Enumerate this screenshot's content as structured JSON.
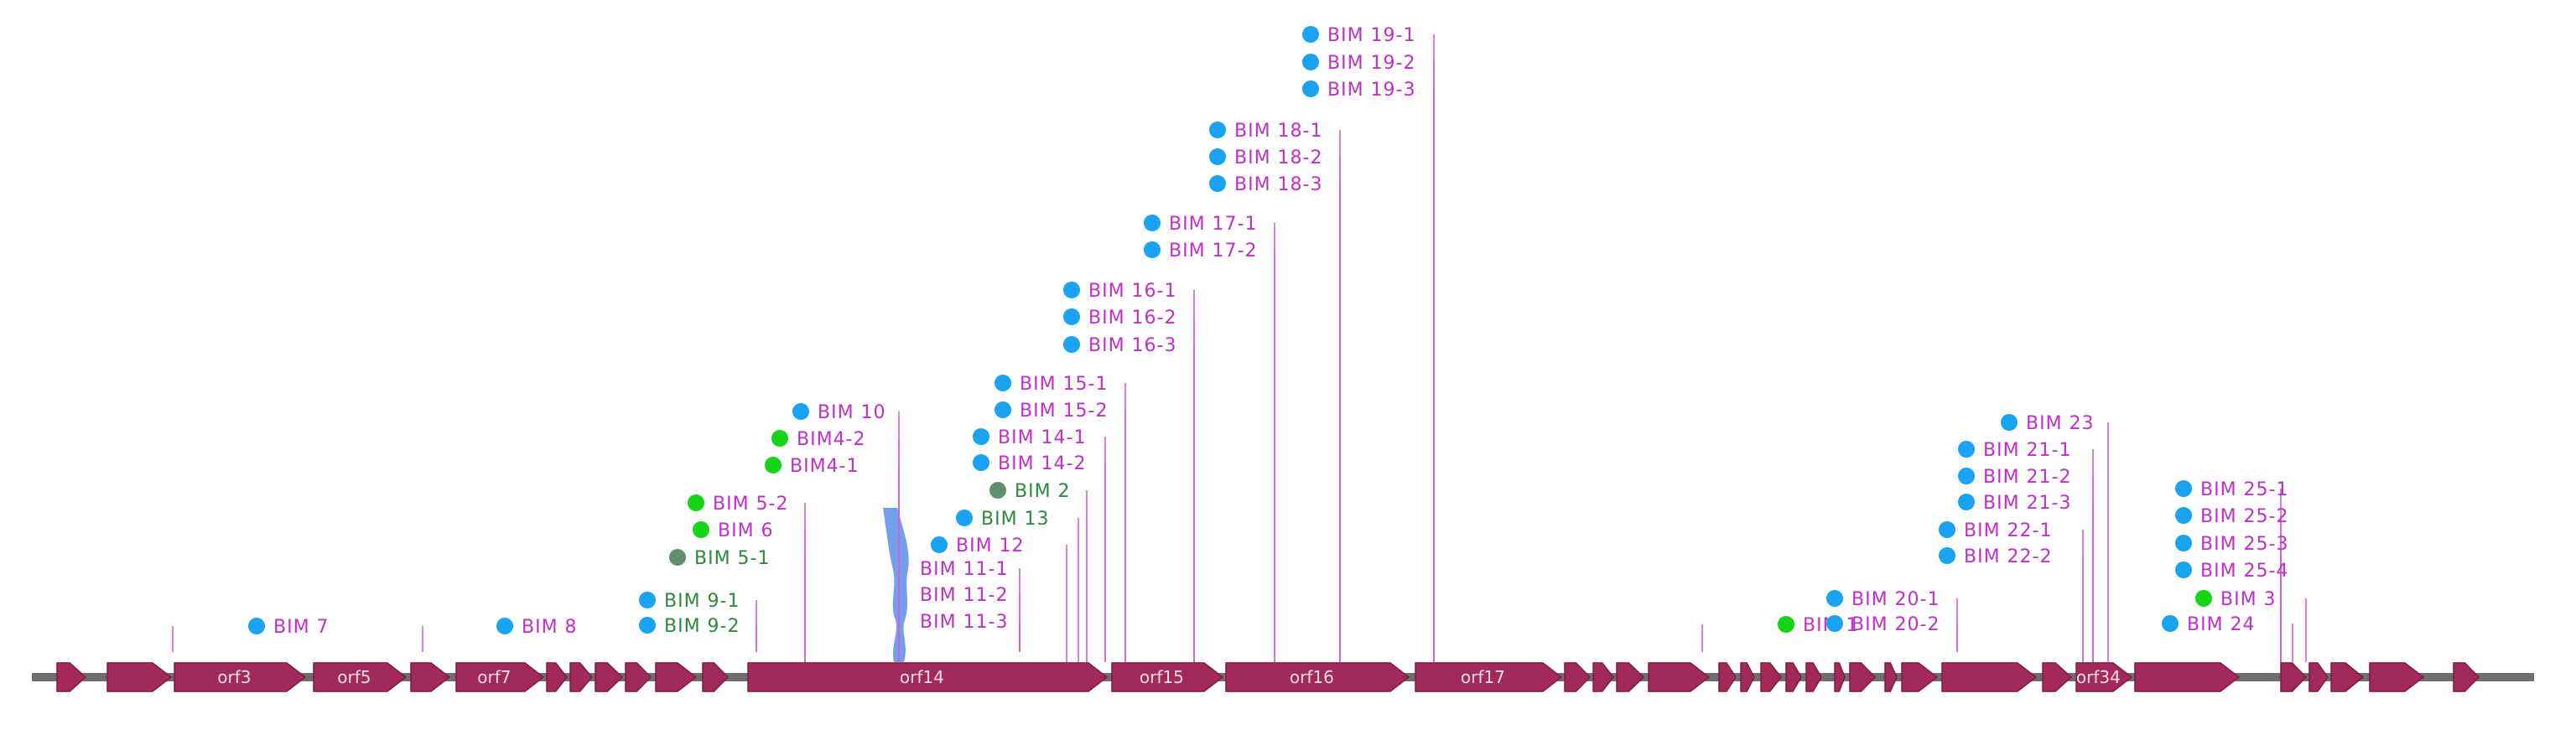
{
  "colors": {
    "backbone": "#6e6e6e",
    "gene": "#a3295a",
    "gene_edge": "#7a1c42",
    "label": "#c02fc8",
    "label_alt": "#2d8a3a",
    "leader": "#d060d6",
    "dot_blue": "#1aa3f0",
    "dot_green": "#16d416",
    "dot_grey": "#5f8f6f",
    "bim10_marker": "#5b8fe6"
  },
  "genes": [
    {
      "name": ""
    },
    {
      "name": ""
    },
    {
      "name": "orf3"
    },
    {
      "name": "orf5"
    },
    {
      "name": ""
    },
    {
      "name": "orf7"
    },
    {
      "name": ""
    },
    {
      "name": ""
    },
    {
      "name": ""
    },
    {
      "name": ""
    },
    {
      "name": ""
    },
    {
      "name": ""
    },
    {
      "name": "orf14"
    },
    {
      "name": "orf15"
    },
    {
      "name": "orf16"
    },
    {
      "name": "orf17"
    },
    {
      "name": ""
    },
    {
      "name": ""
    },
    {
      "name": ""
    },
    {
      "name": ""
    },
    {
      "name": ""
    },
    {
      "name": ""
    },
    {
      "name": ""
    },
    {
      "name": ""
    },
    {
      "name": ""
    },
    {
      "name": ""
    },
    {
      "name": ""
    },
    {
      "name": ""
    },
    {
      "name": ""
    },
    {
      "name": ""
    },
    {
      "name": ""
    },
    {
      "name": "orf34"
    },
    {
      "name": ""
    },
    {
      "name": ""
    },
    {
      "name": ""
    },
    {
      "name": ""
    },
    {
      "name": ""
    },
    {
      "name": ""
    }
  ],
  "sites": [
    {
      "label": "BIM 7",
      "dot": "blue"
    },
    {
      "label": "BIM 8",
      "dot": "blue"
    },
    {
      "label": "BIM 9-1",
      "dot": "blue"
    },
    {
      "label": "BIM 9-2",
      "dot": "blue"
    },
    {
      "label": "BIM 5-2",
      "dot": "green"
    },
    {
      "label": "BIM 6",
      "dot": "green"
    },
    {
      "label": "BIM 5-1",
      "dot": "grey"
    },
    {
      "label": "BIM4-2",
      "dot": "green"
    },
    {
      "label": "BIM4-1",
      "dot": "green"
    },
    {
      "label": "BIM 10",
      "dot": "blue"
    },
    {
      "label": "BIM 11-1",
      "dot": "none"
    },
    {
      "label": "BIM 11-2",
      "dot": "none"
    },
    {
      "label": "BIM 11-3",
      "dot": "none"
    },
    {
      "label": "BIM 12",
      "dot": "blue"
    },
    {
      "label": "BIM 13",
      "dot": "blue"
    },
    {
      "label": "BIM 2",
      "dot": "grey"
    },
    {
      "label": "BIM 14-1",
      "dot": "blue"
    },
    {
      "label": "BIM 14-2",
      "dot": "blue"
    },
    {
      "label": "BIM 15-1",
      "dot": "blue"
    },
    {
      "label": "BIM 15-2",
      "dot": "blue"
    },
    {
      "label": "BIM 16-1",
      "dot": "blue"
    },
    {
      "label": "BIM 16-2",
      "dot": "blue"
    },
    {
      "label": "BIM 16-3",
      "dot": "blue"
    },
    {
      "label": "BIM 17-1",
      "dot": "blue"
    },
    {
      "label": "BIM 17-2",
      "dot": "blue"
    },
    {
      "label": "BIM 18-1",
      "dot": "blue"
    },
    {
      "label": "BIM 18-2",
      "dot": "blue"
    },
    {
      "label": "BIM 18-3",
      "dot": "blue"
    },
    {
      "label": "BIM 19-1",
      "dot": "blue"
    },
    {
      "label": "BIM 19-2",
      "dot": "blue"
    },
    {
      "label": "BIM 19-3",
      "dot": "blue"
    },
    {
      "label": "BIM 1",
      "dot": "green"
    },
    {
      "label": "BIM 20-1",
      "dot": "blue"
    },
    {
      "label": "BIM 20-2",
      "dot": "blue"
    },
    {
      "label": "BIM 22-1",
      "dot": "blue"
    },
    {
      "label": "BIM 22-2",
      "dot": "blue"
    },
    {
      "label": "BIM 21-1",
      "dot": "blue"
    },
    {
      "label": "BIM 21-2",
      "dot": "blue"
    },
    {
      "label": "BIM 21-3",
      "dot": "blue"
    },
    {
      "label": "BIM 23",
      "dot": "blue"
    },
    {
      "label": "BIM 25-1",
      "dot": "blue"
    },
    {
      "label": "BIM 25-2",
      "dot": "blue"
    },
    {
      "label": "BIM 25-3",
      "dot": "blue"
    },
    {
      "label": "BIM 25-4",
      "dot": "blue"
    },
    {
      "label": "BIM 3",
      "dot": "green"
    },
    {
      "label": "BIM 24",
      "dot": "blue"
    }
  ]
}
